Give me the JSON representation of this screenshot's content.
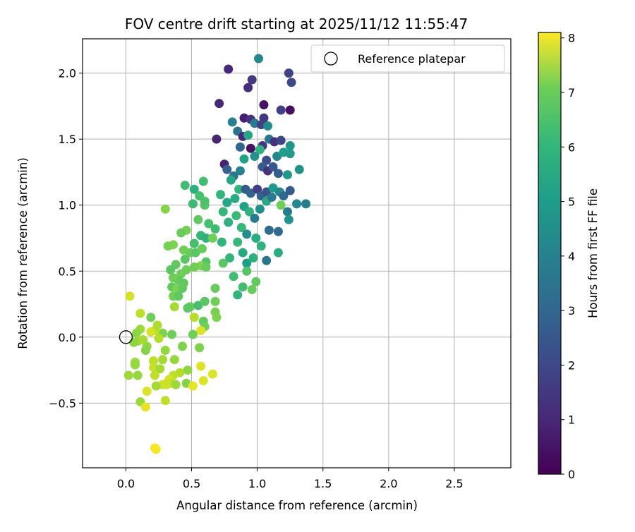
{
  "chart_data": {
    "type": "scatter",
    "title": "FOV centre drift starting at 2025/11/12 11:55:47",
    "xlabel": "Angular distance from reference (arcmin)",
    "ylabel": "Rotation from reference (arcmin)",
    "xlim": [
      -0.33,
      2.93
    ],
    "ylim": [
      -0.99,
      2.26
    ],
    "xticks": [
      "0.0",
      "0.5",
      "1.0",
      "1.5",
      "2.0",
      "2.5"
    ],
    "yticks": [
      "−0.5",
      "0.0",
      "0.5",
      "1.0",
      "1.5",
      "2.0"
    ],
    "grid": true,
    "legend": {
      "position": "top-right",
      "entries": [
        "Reference platepar"
      ]
    },
    "reference_point": {
      "x": 0.0,
      "y": 0.0,
      "name": "Reference platepar",
      "marker": "open circle"
    },
    "colorbar": {
      "label": "Hours from first FF file",
      "range": [
        0,
        8.1
      ],
      "ticks": [
        "0",
        "1",
        "2",
        "3",
        "4",
        "5",
        "6",
        "7",
        "8"
      ],
      "colormap": "viridis"
    },
    "points_note": "each point: [x, y, hours]",
    "points": [
      [
        0.78,
        2.03,
        0.9
      ],
      [
        1.01,
        2.11,
        3.8
      ],
      [
        0.96,
        1.95,
        1.4
      ],
      [
        0.93,
        1.89,
        1.0
      ],
      [
        1.24,
        2.0,
        1.6
      ],
      [
        1.26,
        1.93,
        1.8
      ],
      [
        0.71,
        1.77,
        0.9
      ],
      [
        0.9,
        1.66,
        0.7
      ],
      [
        0.95,
        1.65,
        1.2
      ],
      [
        1.05,
        1.66,
        1.3
      ],
      [
        1.05,
        1.76,
        0.4
      ],
      [
        1.18,
        1.72,
        1.5
      ],
      [
        1.25,
        1.72,
        0.3
      ],
      [
        0.81,
        1.63,
        3.6
      ],
      [
        0.85,
        1.56,
        3.1
      ],
      [
        0.89,
        1.52,
        0.9
      ],
      [
        0.93,
        1.53,
        4.8
      ],
      [
        0.98,
        1.62,
        3.3
      ],
      [
        1.03,
        1.61,
        1.6
      ],
      [
        1.08,
        1.6,
        3.9
      ],
      [
        1.04,
        1.45,
        1.3
      ],
      [
        1.09,
        1.5,
        3.2
      ],
      [
        1.13,
        1.48,
        1.1
      ],
      [
        1.18,
        1.49,
        1.7
      ],
      [
        1.25,
        1.45,
        4.2
      ],
      [
        0.69,
        1.5,
        0.8
      ],
      [
        0.75,
        1.31,
        0.8
      ],
      [
        0.87,
        1.44,
        2.6
      ],
      [
        0.95,
        1.43,
        0.4
      ],
      [
        1.02,
        1.42,
        5.2
      ],
      [
        1.07,
        1.34,
        1.9
      ],
      [
        1.15,
        1.37,
        3.8
      ],
      [
        1.2,
        1.4,
        4.5
      ],
      [
        1.25,
        1.39,
        4.3
      ],
      [
        1.32,
        1.27,
        4.1
      ],
      [
        0.77,
        1.27,
        2.5
      ],
      [
        0.82,
        1.22,
        3.2
      ],
      [
        0.87,
        1.26,
        3.6
      ],
      [
        0.9,
        1.35,
        4.7
      ],
      [
        0.98,
        1.37,
        4.1
      ],
      [
        1.04,
        1.29,
        2.4
      ],
      [
        1.08,
        1.26,
        1.2
      ],
      [
        1.12,
        1.29,
        2.2
      ],
      [
        1.16,
        1.24,
        2.4
      ],
      [
        1.23,
        1.23,
        4.3
      ],
      [
        0.8,
        1.19,
        4.8
      ],
      [
        0.86,
        1.12,
        5.3
      ],
      [
        0.91,
        1.12,
        2.2
      ],
      [
        0.95,
        1.09,
        2.6
      ],
      [
        1.0,
        1.12,
        1.5
      ],
      [
        1.03,
        1.07,
        2.4
      ],
      [
        1.07,
        1.1,
        2.1
      ],
      [
        1.12,
        1.13,
        4.4
      ],
      [
        1.17,
        1.1,
        3.8
      ],
      [
        1.2,
        1.07,
        2.7
      ],
      [
        1.25,
        1.11,
        2.3
      ],
      [
        0.72,
        1.08,
        5.3
      ],
      [
        0.77,
        1.02,
        4.8
      ],
      [
        0.83,
        1.05,
        5.0
      ],
      [
        0.9,
        0.99,
        4.6
      ],
      [
        0.94,
        0.95,
        5.2
      ],
      [
        0.98,
        0.9,
        3.4
      ],
      [
        1.02,
        0.97,
        4.0
      ],
      [
        1.07,
        1.03,
        4.9
      ],
      [
        1.11,
        1.06,
        3.3
      ],
      [
        1.18,
        1.0,
        6.3
      ],
      [
        1.23,
        0.95,
        3.4
      ],
      [
        1.24,
        0.89,
        4.2
      ],
      [
        1.3,
        1.01,
        3.8
      ],
      [
        1.37,
        1.01,
        3.5
      ],
      [
        0.74,
        0.95,
        5.4
      ],
      [
        0.78,
        0.87,
        5.2
      ],
      [
        0.84,
        0.92,
        5.5
      ],
      [
        0.88,
        0.83,
        5.4
      ],
      [
        0.92,
        0.78,
        4.0
      ],
      [
        0.99,
        0.75,
        5.0
      ],
      [
        1.03,
        0.69,
        5.2
      ],
      [
        1.09,
        0.81,
        2.8
      ],
      [
        1.16,
        0.8,
        2.8
      ],
      [
        1.07,
        0.58,
        3.2
      ],
      [
        1.16,
        0.64,
        5.0
      ],
      [
        0.73,
        0.72,
        5.3
      ],
      [
        0.79,
        0.6,
        5.3
      ],
      [
        0.85,
        0.72,
        5.4
      ],
      [
        0.89,
        0.64,
        4.9
      ],
      [
        0.92,
        0.56,
        4.5
      ],
      [
        0.97,
        0.6,
        5.1
      ],
      [
        0.74,
        0.56,
        6.0
      ],
      [
        0.82,
        0.46,
        5.6
      ],
      [
        0.85,
        0.32,
        5.3
      ],
      [
        0.89,
        0.38,
        5.6
      ],
      [
        0.96,
        0.36,
        6.2
      ],
      [
        0.99,
        0.42,
        6.1
      ],
      [
        0.92,
        0.5,
        5.9
      ],
      [
        0.59,
        1.18,
        5.6
      ],
      [
        0.52,
        1.12,
        5.1
      ],
      [
        0.45,
        1.15,
        5.6
      ],
      [
        0.56,
        1.07,
        5.7
      ],
      [
        0.6,
        1.0,
        5.9
      ],
      [
        0.51,
        1.01,
        5.5
      ],
      [
        0.6,
        1.03,
        5.8
      ],
      [
        0.55,
        0.89,
        6.1
      ],
      [
        0.63,
        0.86,
        5.7
      ],
      [
        0.68,
        0.82,
        5.6
      ],
      [
        0.57,
        0.77,
        5.4
      ],
      [
        0.61,
        0.75,
        5.2
      ],
      [
        0.66,
        0.75,
        6.3
      ],
      [
        0.52,
        0.71,
        5.7
      ],
      [
        0.46,
        0.81,
        6.4
      ],
      [
        0.42,
        0.79,
        6.2
      ],
      [
        0.36,
        0.7,
        6.5
      ],
      [
        0.32,
        0.69,
        6.4
      ],
      [
        0.44,
        0.66,
        6.3
      ],
      [
        0.49,
        0.64,
        6.2
      ],
      [
        0.53,
        0.64,
        6.0
      ],
      [
        0.58,
        0.67,
        6.2
      ],
      [
        0.61,
        0.57,
        5.9
      ],
      [
        0.57,
        0.54,
        6.5
      ],
      [
        0.61,
        0.53,
        6.2
      ],
      [
        0.52,
        0.53,
        6.3
      ],
      [
        0.45,
        0.59,
        6.0
      ],
      [
        0.38,
        0.55,
        6.1
      ],
      [
        0.34,
        0.51,
        6.0
      ],
      [
        0.42,
        0.48,
        6.3
      ],
      [
        0.46,
        0.51,
        6.3
      ],
      [
        0.4,
        0.43,
        6.1
      ],
      [
        0.36,
        0.45,
        6.3
      ],
      [
        0.3,
        0.97,
        6.6
      ],
      [
        0.35,
        0.38,
        6.1
      ],
      [
        0.39,
        0.37,
        6.5
      ],
      [
        0.44,
        0.41,
        6.1
      ],
      [
        0.43,
        0.37,
        6.1
      ],
      [
        0.36,
        0.31,
        6.3
      ],
      [
        0.4,
        0.31,
        6.1
      ],
      [
        0.37,
        0.23,
        7.0
      ],
      [
        0.49,
        0.23,
        6.2
      ],
      [
        0.47,
        0.22,
        6.0
      ],
      [
        0.55,
        0.24,
        5.7
      ],
      [
        0.6,
        0.27,
        6.0
      ],
      [
        0.68,
        0.27,
        6.3
      ],
      [
        0.68,
        0.37,
        6.2
      ],
      [
        0.68,
        0.19,
        6.4
      ],
      [
        0.69,
        0.15,
        6.5
      ],
      [
        0.52,
        0.15,
        7.2
      ],
      [
        0.59,
        0.12,
        6.1
      ],
      [
        0.6,
        0.08,
        6.3
      ],
      [
        0.57,
        0.05,
        7.7
      ],
      [
        0.51,
        0.02,
        6.3
      ],
      [
        0.35,
        0.02,
        6.3
      ],
      [
        0.28,
        0.03,
        6.5
      ],
      [
        0.22,
        0.05,
        7.3
      ],
      [
        0.19,
        0.04,
        7.6
      ],
      [
        0.24,
        0.09,
        7.1
      ],
      [
        0.19,
        0.15,
        6.3
      ],
      [
        0.11,
        0.18,
        7.3
      ],
      [
        0.03,
        0.31,
        7.6
      ],
      [
        0.11,
        0.06,
        6.9
      ],
      [
        0.08,
        0.03,
        6.7
      ],
      [
        0.09,
        -0.03,
        6.9
      ],
      [
        0.13,
        -0.02,
        7.0
      ],
      [
        0.06,
        -0.04,
        6.7
      ],
      [
        0.16,
        -0.07,
        6.8
      ],
      [
        0.15,
        -0.1,
        6.6
      ],
      [
        0.25,
        -0.01,
        7.2
      ],
      [
        0.3,
        -0.1,
        6.8
      ],
      [
        0.43,
        -0.07,
        6.5
      ],
      [
        0.56,
        -0.08,
        6.5
      ],
      [
        0.28,
        -0.17,
        7.0
      ],
      [
        0.37,
        -0.17,
        6.8
      ],
      [
        0.07,
        -0.19,
        6.9
      ],
      [
        0.07,
        -0.21,
        6.8
      ],
      [
        0.21,
        -0.18,
        7.3
      ],
      [
        0.21,
        -0.23,
        7.4
      ],
      [
        0.26,
        -0.24,
        7.0
      ],
      [
        0.41,
        -0.27,
        7.2
      ],
      [
        0.36,
        -0.29,
        7.3
      ],
      [
        0.47,
        -0.25,
        6.7
      ],
      [
        0.57,
        -0.22,
        7.7
      ],
      [
        0.66,
        -0.28,
        7.7
      ],
      [
        0.59,
        -0.33,
        7.7
      ],
      [
        0.02,
        -0.29,
        6.9
      ],
      [
        0.09,
        -0.29,
        6.8
      ],
      [
        0.22,
        -0.29,
        7.3
      ],
      [
        0.33,
        -0.32,
        7.6
      ],
      [
        0.31,
        -0.35,
        7.5
      ],
      [
        0.28,
        -0.36,
        7.5
      ],
      [
        0.23,
        -0.37,
        7.0
      ],
      [
        0.35,
        -0.35,
        7.3
      ],
      [
        0.38,
        -0.36,
        6.9
      ],
      [
        0.46,
        -0.35,
        6.6
      ],
      [
        0.51,
        -0.37,
        7.8
      ],
      [
        0.16,
        -0.41,
        7.7
      ],
      [
        0.11,
        -0.49,
        6.9
      ],
      [
        0.3,
        -0.48,
        7.3
      ],
      [
        0.15,
        -0.53,
        7.8
      ],
      [
        0.22,
        -0.84,
        8.0
      ],
      [
        0.23,
        -0.85,
        8.0
      ],
      [
        0.31,
        -0.36,
        7.5
      ]
    ]
  }
}
